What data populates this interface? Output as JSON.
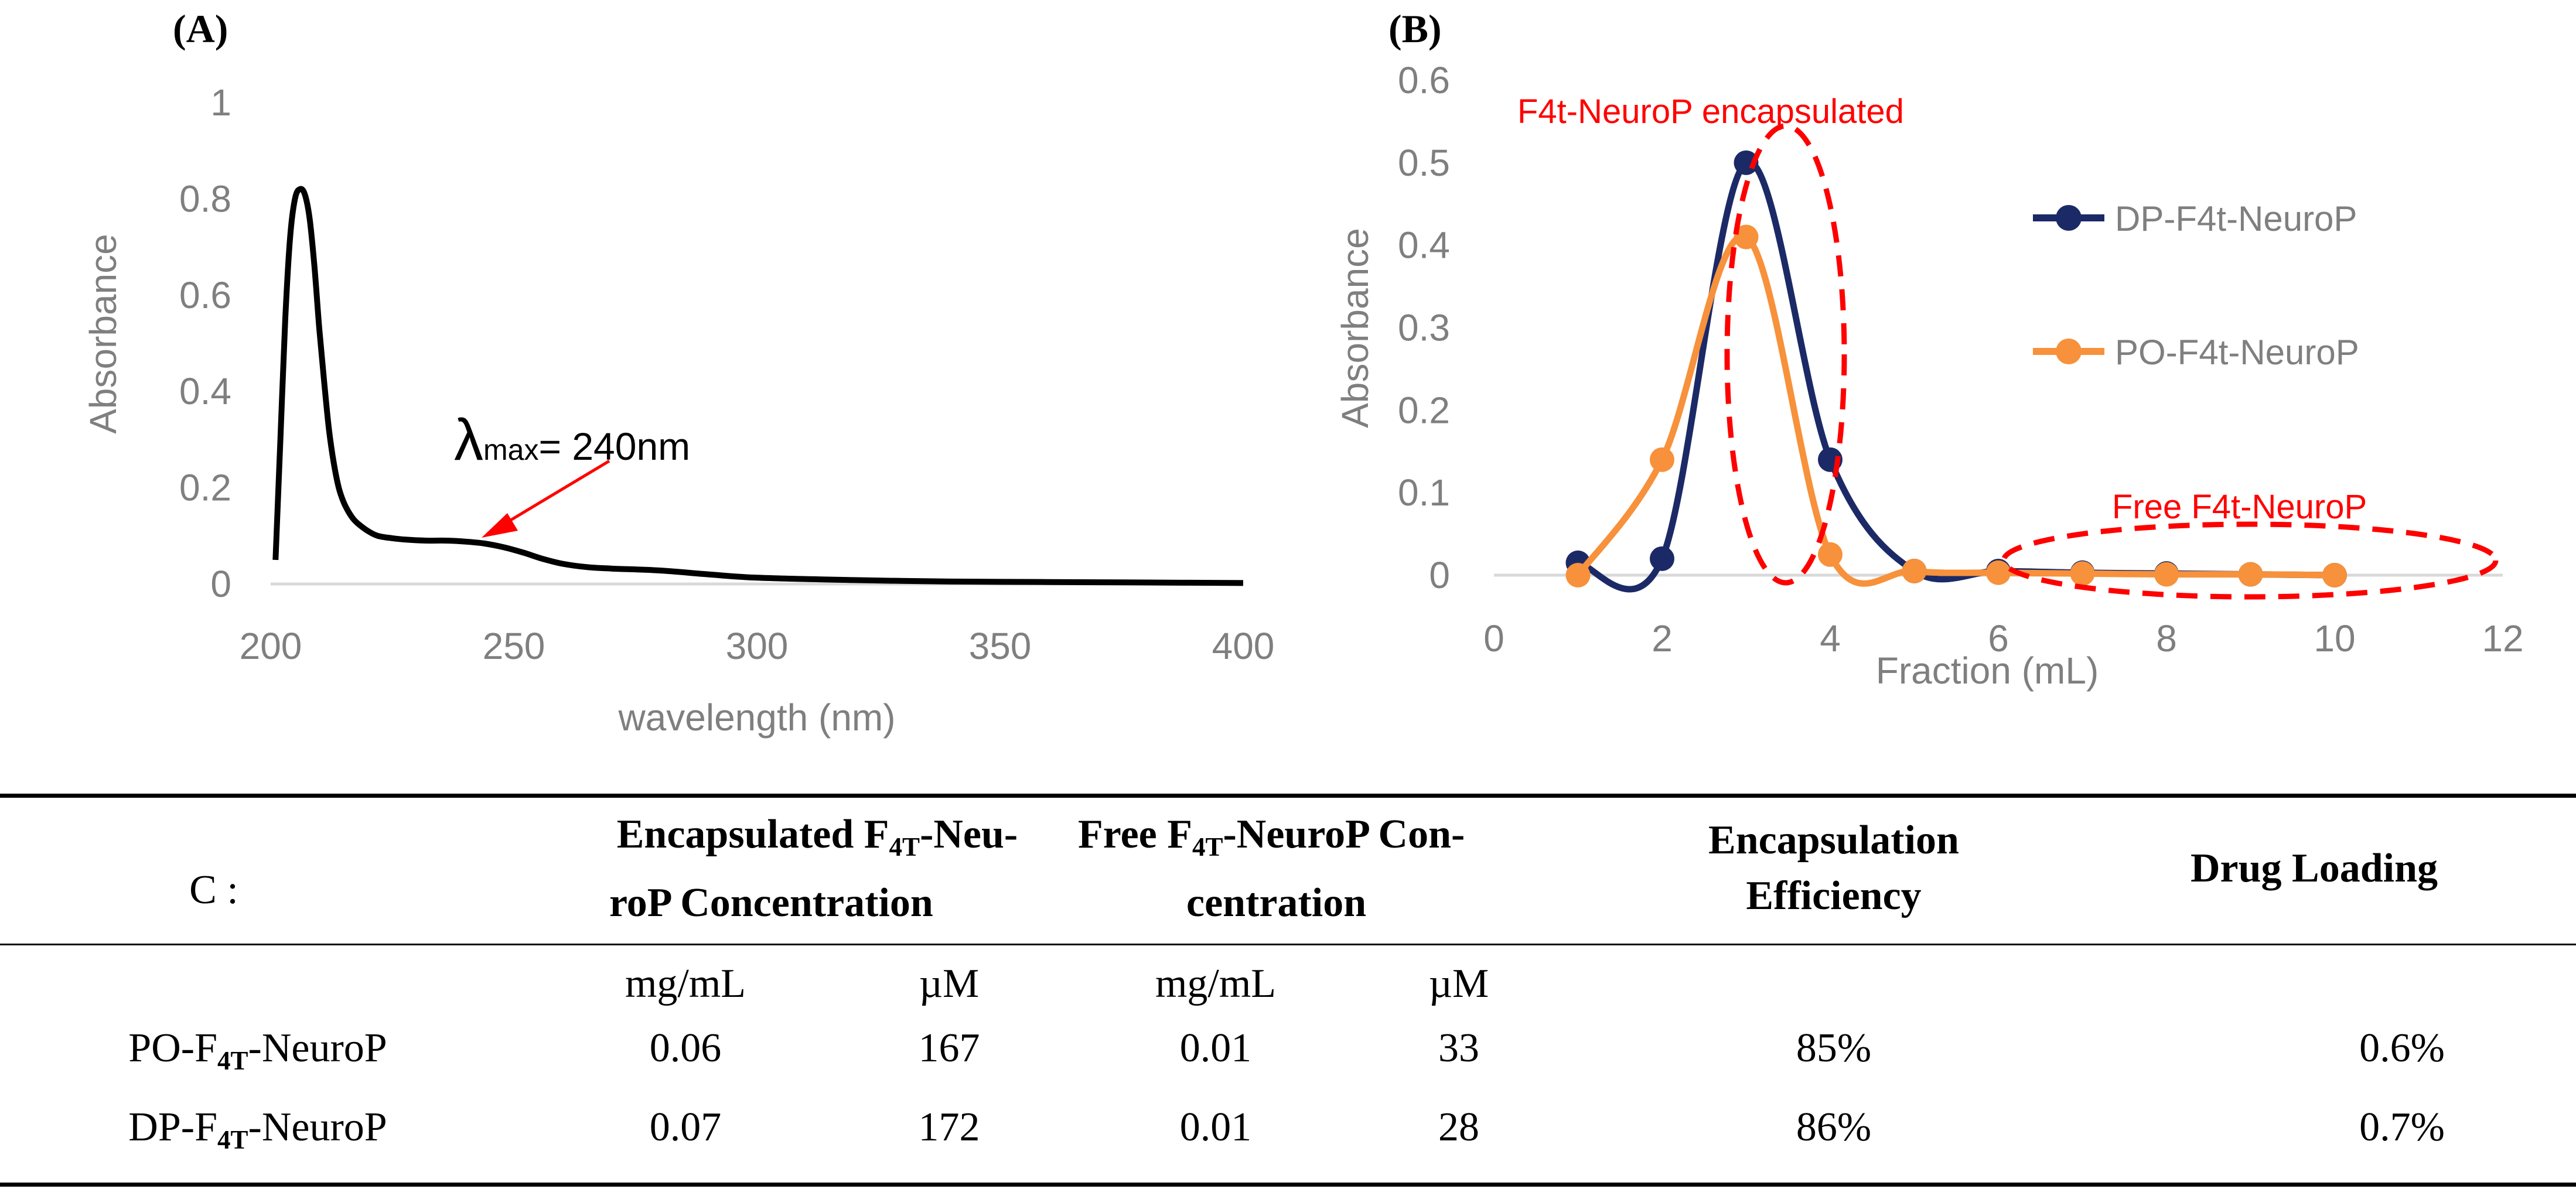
{
  "chart_data": [
    {
      "panel": "A",
      "type": "line",
      "panel_label": "(A)",
      "xlabel": "wavelength (nm)",
      "ylabel": "Absorbance",
      "xlim": [
        200,
        400
      ],
      "ylim": [
        0,
        1
      ],
      "xticks": [
        "200",
        "250",
        "300",
        "350",
        "400"
      ],
      "yticks": [
        "0",
        "0.2",
        "0.4",
        "0.6",
        "0.8",
        "1"
      ],
      "x_tick_values": [
        200,
        250,
        300,
        350,
        400
      ],
      "y_tick_values": [
        0,
        0.2,
        0.4,
        0.6,
        0.8,
        1
      ],
      "series": [
        {
          "name": "spectrum",
          "color": "#000000",
          "x": [
            201,
            202,
            203,
            204,
            205,
            206,
            207,
            208,
            209,
            210,
            211,
            212,
            213,
            214,
            215,
            216,
            217,
            218,
            220,
            222,
            225,
            228,
            232,
            236,
            240,
            244,
            248,
            252,
            256,
            260,
            265,
            270,
            280,
            290,
            300,
            320,
            340,
            360,
            380,
            400
          ],
          "y": [
            0.05,
            0.3,
            0.55,
            0.72,
            0.8,
            0.82,
            0.81,
            0.76,
            0.66,
            0.53,
            0.42,
            0.32,
            0.25,
            0.2,
            0.17,
            0.15,
            0.135,
            0.125,
            0.11,
            0.1,
            0.095,
            0.092,
            0.09,
            0.09,
            0.088,
            0.084,
            0.076,
            0.065,
            0.052,
            0.042,
            0.035,
            0.032,
            0.028,
            0.02,
            0.013,
            0.008,
            0.005,
            0.004,
            0.003,
            0.002
          ]
        }
      ],
      "annotation": {
        "lambda": "λ",
        "sub": "max",
        "text": "= 240nm",
        "arrow_to": [
          241,
          0.09
        ]
      }
    },
    {
      "panel": "B",
      "type": "line",
      "panel_label": "(B)",
      "xlabel": "Fraction (mL)",
      "ylabel": "Absorbance",
      "xlim": [
        0,
        12
      ],
      "ylim": [
        0,
        0.6
      ],
      "xticks": [
        "0",
        "2",
        "4",
        "6",
        "8",
        "10",
        "12"
      ],
      "yticks": [
        "0",
        "0.1",
        "0.2",
        "0.3",
        "0.4",
        "0.5",
        "0.6"
      ],
      "x_tick_values": [
        0,
        2,
        4,
        6,
        8,
        10,
        12
      ],
      "y_tick_values": [
        0,
        0.1,
        0.2,
        0.3,
        0.4,
        0.5,
        0.6
      ],
      "series": [
        {
          "name": "DP-F4t-NeuroP",
          "color": "#1b2a66",
          "x": [
            1,
            2,
            3,
            4,
            5,
            6,
            7,
            8,
            9,
            10
          ],
          "y": [
            0.015,
            0.02,
            0.5,
            0.14,
            0.005,
            0.005,
            0.003,
            0.002,
            0.001,
            0.0
          ]
        },
        {
          "name": "PO-F4t-NeuroP",
          "color": "#f7913b",
          "x": [
            1,
            2,
            3,
            4,
            5,
            6,
            7,
            8,
            9,
            10
          ],
          "y": [
            0.0,
            0.14,
            0.41,
            0.025,
            0.005,
            0.003,
            0.002,
            0.001,
            0.001,
            0.0
          ]
        }
      ],
      "annotations": [
        {
          "text": "F4t-NeuroP encapsulated",
          "color": "#ff0000"
        },
        {
          "text": "Free F4t-NeuroP",
          "color": "#ff0000"
        }
      ],
      "legend": "right"
    },
    {
      "panel": "C",
      "type": "table",
      "corner_label": "C :",
      "headers": [
        {
          "pre": "Encapsulated F",
          "sub": "4T",
          "post": "-Neu-",
          "line2": "roP Concentration"
        },
        {
          "pre": "Free F",
          "sub": "4T",
          "post": "-NeuroP Con-",
          "line2": "centration"
        },
        {
          "line1": "Encapsulation",
          "line2": "Efficiency"
        },
        {
          "line1": "Drug Loading"
        }
      ],
      "units": [
        "mg/mL",
        "µM",
        "mg/mL",
        "µM"
      ],
      "rows": [
        {
          "name_pre": "PO-F",
          "name_sub": "4T",
          "name_post": "-NeuroP",
          "values": [
            "0.06",
            "167",
            "0.01",
            "33",
            "85%",
            "0.6%"
          ]
        },
        {
          "name_pre": "DP-F",
          "name_sub": "4T",
          "name_post": "-NeuroP",
          "values": [
            "0.07",
            "172",
            "0.01",
            "28",
            "86%",
            "0.7%"
          ]
        }
      ]
    }
  ]
}
